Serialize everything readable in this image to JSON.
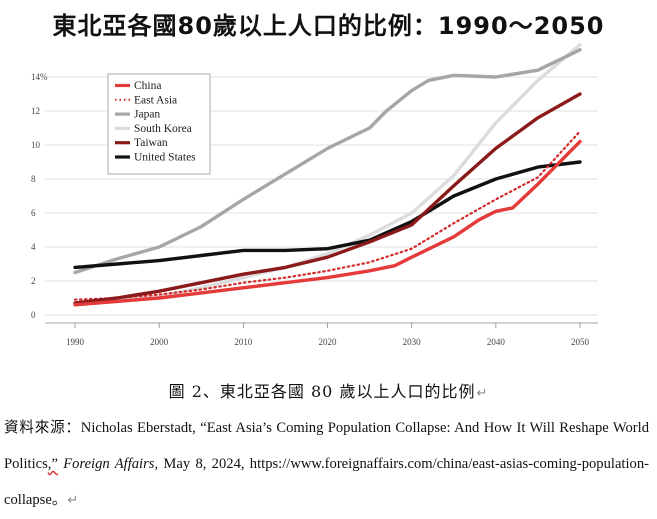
{
  "chart_data": {
    "type": "line",
    "title": "東北亞各國80歲以上人口的比例：1990～2050",
    "xlabel": "",
    "ylabel": "",
    "xlim": [
      1990,
      2050
    ],
    "ylim": [
      0,
      16
    ],
    "x_ticks": [
      1990,
      2000,
      2010,
      2020,
      2030,
      2040,
      2050
    ],
    "y_ticks": [
      0,
      2,
      4,
      6,
      8,
      10,
      12,
      14
    ],
    "y_tick_labels": [
      "0",
      "2",
      "4",
      "6",
      "8",
      "10",
      "12",
      "14%"
    ],
    "grid": "horizontal",
    "legend_position": "top-left",
    "series": [
      {
        "name": "China",
        "color": "#e53a3a",
        "style": "solid",
        "x": [
          1990,
          1995,
          2000,
          2005,
          2010,
          2015,
          2020,
          2025,
          2028,
          2030,
          2035,
          2038,
          2040,
          2042,
          2045,
          2050
        ],
        "y": [
          0.6,
          0.8,
          1.0,
          1.3,
          1.6,
          1.9,
          2.2,
          2.6,
          2.9,
          3.4,
          4.6,
          5.6,
          6.1,
          6.3,
          7.7,
          10.2
        ]
      },
      {
        "name": "East Asia",
        "color": "#d42a2a",
        "style": "dotted",
        "x": [
          1990,
          1995,
          2000,
          2005,
          2010,
          2015,
          2020,
          2025,
          2030,
          2035,
          2040,
          2045,
          2050
        ],
        "y": [
          0.9,
          1.0,
          1.2,
          1.5,
          1.9,
          2.2,
          2.6,
          3.1,
          3.9,
          5.4,
          6.8,
          8.1,
          10.8
        ]
      },
      {
        "name": "Japan",
        "color": "#a6a6a6",
        "style": "solid",
        "x": [
          1990,
          1995,
          2000,
          2005,
          2010,
          2015,
          2020,
          2025,
          2027,
          2030,
          2032,
          2035,
          2040,
          2045,
          2050
        ],
        "y": [
          2.5,
          3.3,
          4.0,
          5.2,
          6.8,
          8.3,
          9.8,
          11.0,
          12.0,
          13.2,
          13.8,
          14.1,
          14.0,
          14.4,
          15.6
        ]
      },
      {
        "name": "South Korea",
        "color": "#dcdcdc",
        "style": "solid",
        "x": [
          1990,
          1995,
          2000,
          2005,
          2010,
          2015,
          2020,
          2025,
          2030,
          2035,
          2040,
          2045,
          2050
        ],
        "y": [
          0.7,
          0.9,
          1.1,
          1.6,
          2.2,
          2.8,
          3.6,
          4.7,
          6.0,
          8.2,
          11.3,
          13.8,
          15.9
        ]
      },
      {
        "name": "Taiwan",
        "color": "#8b1a1a",
        "style": "solid",
        "x": [
          1990,
          1995,
          2000,
          2005,
          2010,
          2015,
          2020,
          2025,
          2030,
          2035,
          2040,
          2045,
          2050
        ],
        "y": [
          0.7,
          1.0,
          1.4,
          1.9,
          2.4,
          2.8,
          3.4,
          4.3,
          5.3,
          7.6,
          9.8,
          11.6,
          13.0
        ]
      },
      {
        "name": "United States",
        "color": "#111111",
        "style": "solid",
        "x": [
          1990,
          1995,
          2000,
          2005,
          2010,
          2015,
          2020,
          2025,
          2030,
          2035,
          2040,
          2045,
          2050
        ],
        "y": [
          2.8,
          3.0,
          3.2,
          3.5,
          3.8,
          3.8,
          3.9,
          4.4,
          5.5,
          7.0,
          8.0,
          8.7,
          9.0
        ]
      }
    ]
  },
  "caption": {
    "text": "圖 2、東北亞各國 80 歲以上人口的比例",
    "para_mark": "↵"
  },
  "source": {
    "prefix": "資料來源：Nicholas Eberstadt, “East Asia’s Coming Population Collapse: And How It Will Reshape World Politics",
    "quote_end": ",”",
    "journal": "Foreign Affairs",
    "suffix": ", May 8, 2024, https://www.foreignaffairs.com/china/east-asias-coming-population-collapse。",
    "para_mark": "↵"
  }
}
